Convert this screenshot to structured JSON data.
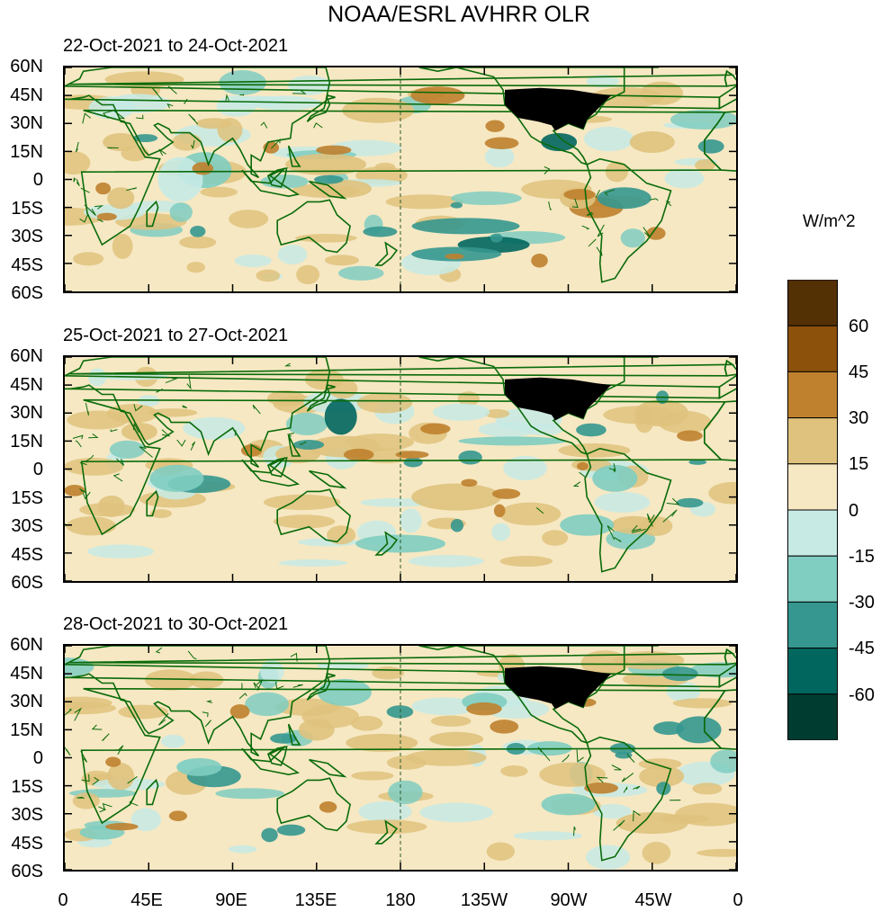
{
  "title": "NOAA/ESRL AVHRR OLR",
  "panels": [
    {
      "label": "22-Oct-2021 to 24-Oct-2021"
    },
    {
      "label": "25-Oct-2021 to 27-Oct-2021"
    },
    {
      "label": "28-Oct-2021 to 30-Oct-2021"
    }
  ],
  "y_ticks": [
    "60N",
    "45N",
    "30N",
    "15N",
    "0",
    "15S",
    "30S",
    "45S",
    "60S"
  ],
  "x_ticks": [
    "0",
    "45E",
    "90E",
    "135E",
    "180",
    "135W",
    "90W",
    "45W",
    "0"
  ],
  "colorbar": {
    "unit": "W/m^2",
    "labels": [
      "60",
      "45",
      "30",
      "15",
      "0",
      "-15",
      "-30",
      "-45",
      "-60"
    ],
    "colors": [
      "#543005",
      "#8c510a",
      "#bf812d",
      "#dfc27d",
      "#f6e8c3",
      "#c7eae5",
      "#80cdc1",
      "#35978f",
      "#01665e",
      "#003c30"
    ]
  },
  "colors": {
    "coastline": "#0a6b0a",
    "no_data": "#000000"
  }
}
